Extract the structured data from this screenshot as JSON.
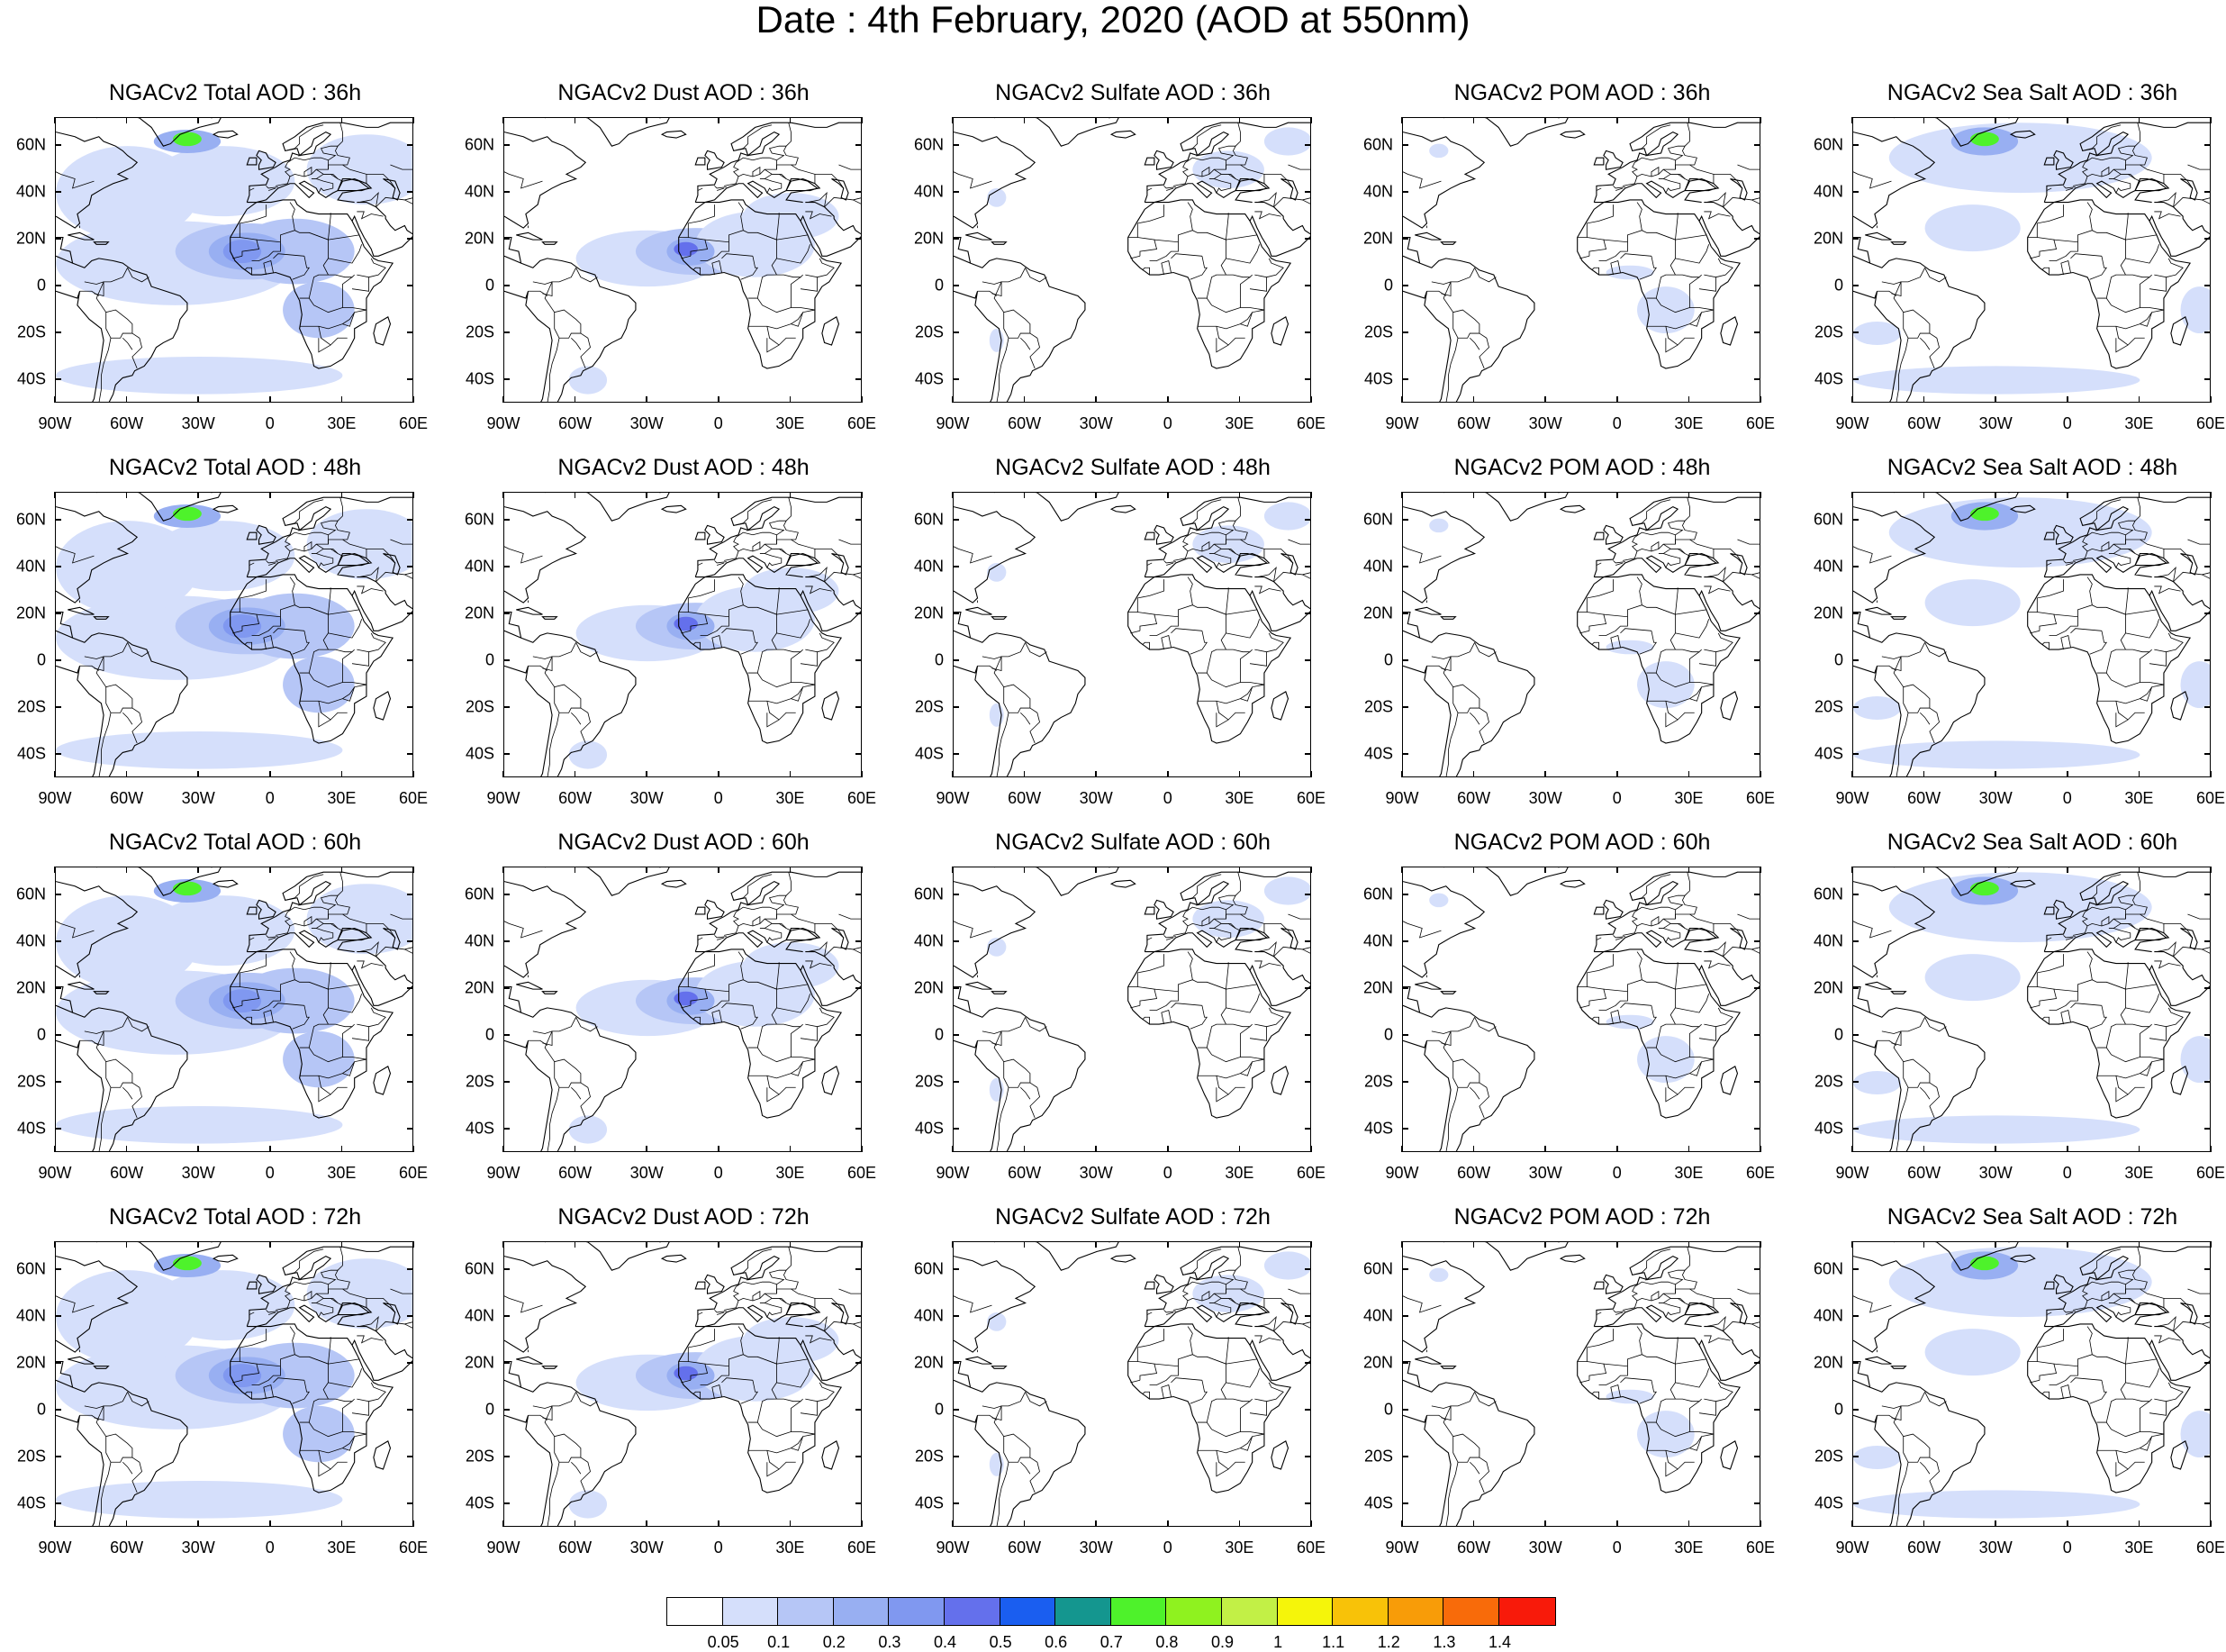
{
  "title": "Date : 4th February, 2020 (AOD at 550nm)",
  "lat_labels": [
    "60N",
    "40N",
    "20N",
    "0",
    "20S",
    "40S"
  ],
  "lon_labels": [
    "90W",
    "60W",
    "30W",
    "0",
    "30E",
    "60E"
  ],
  "lat_values": [
    60,
    40,
    20,
    0,
    -20,
    -40
  ],
  "lon_values": [
    -90,
    -60,
    -30,
    0,
    30,
    60
  ],
  "map_extent": {
    "lon": [
      -90,
      60
    ],
    "lat": [
      -50,
      72
    ]
  },
  "panels": [
    [
      {
        "title": "NGACv2 Total AOD : 36h",
        "species": "total"
      },
      {
        "title": "NGACv2 Dust AOD : 36h",
        "species": "dust"
      },
      {
        "title": "NGACv2 Sulfate AOD : 36h",
        "species": "sulfate"
      },
      {
        "title": "NGACv2 POM AOD : 36h",
        "species": "pom"
      },
      {
        "title": "NGACv2 Sea Salt AOD : 36h",
        "species": "seasalt"
      }
    ],
    [
      {
        "title": "NGACv2 Total AOD : 48h",
        "species": "total"
      },
      {
        "title": "NGACv2 Dust AOD : 48h",
        "species": "dust"
      },
      {
        "title": "NGACv2 Sulfate AOD : 48h",
        "species": "sulfate"
      },
      {
        "title": "NGACv2 POM AOD : 48h",
        "species": "pom"
      },
      {
        "title": "NGACv2 Sea Salt AOD : 48h",
        "species": "seasalt"
      }
    ],
    [
      {
        "title": "NGACv2 Total AOD : 60h",
        "species": "total"
      },
      {
        "title": "NGACv2 Dust AOD : 60h",
        "species": "dust"
      },
      {
        "title": "NGACv2 Sulfate AOD : 60h",
        "species": "sulfate"
      },
      {
        "title": "NGACv2 POM AOD : 60h",
        "species": "pom"
      },
      {
        "title": "NGACv2 Sea Salt AOD : 60h",
        "species": "seasalt"
      }
    ],
    [
      {
        "title": "NGACv2 Total AOD : 72h",
        "species": "total"
      },
      {
        "title": "NGACv2 Dust AOD : 72h",
        "species": "dust"
      },
      {
        "title": "NGACv2 Sulfate AOD : 72h",
        "species": "sulfate"
      },
      {
        "title": "NGACv2 POM AOD : 72h",
        "species": "pom"
      },
      {
        "title": "NGACv2 Sea Salt  AOD : 72h",
        "species": "seasalt"
      }
    ]
  ],
  "colorbar": {
    "labels": [
      "0.05",
      "0.1",
      "0.2",
      "0.3",
      "0.4",
      "0.5",
      "0.6",
      "0.7",
      "0.8",
      "0.9",
      "1",
      "1.1",
      "1.2",
      "1.3",
      "1.4"
    ],
    "colors": [
      "#ffffff",
      "#d5dffb",
      "#b6c6f6",
      "#98aff2",
      "#8098f0",
      "#6470ec",
      "#1a5ef0",
      "#14968f",
      "#4ef22b",
      "#8ff21f",
      "#c2f046",
      "#f5f50a",
      "#f8c208",
      "#f89c08",
      "#f86b0a",
      "#f81a0a"
    ]
  }
}
